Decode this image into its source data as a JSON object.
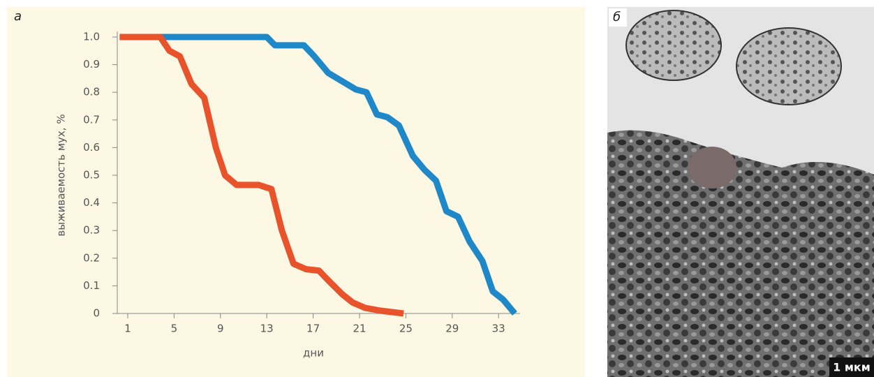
{
  "figure": {
    "panel_a_label": "а",
    "panel_b_label": "б",
    "scale_bar": "1 мкм"
  },
  "chart_data": {
    "type": "line",
    "x_label": "дни",
    "y_label": "выживаемость мух, %",
    "xlim": [
      0,
      35
    ],
    "ylim": [
      0,
      1
    ],
    "xticks": [
      1,
      5,
      9,
      13,
      17,
      21,
      25,
      29,
      33
    ],
    "yticks": [
      0,
      0.1,
      0.2,
      0.3,
      0.4,
      0.5,
      0.6,
      0.7,
      0.8,
      0.9,
      {
        "value": 1,
        "label": "1.0"
      }
    ],
    "series": [
      {
        "color": "#1f88c9",
        "x": [
          0.3,
          13,
          13.7,
          16.2,
          17.1,
          18.3,
          19.5,
          20.7,
          21.6,
          22.5,
          23.4,
          24.4,
          25.6,
          26.6,
          27.6,
          28.5,
          29.5,
          30.5,
          31.6,
          32.5,
          33.4,
          34.4
        ],
        "values": [
          1,
          1,
          0.97,
          0.97,
          0.93,
          0.87,
          0.84,
          0.81,
          0.8,
          0.72,
          0.71,
          0.68,
          0.57,
          0.52,
          0.48,
          0.37,
          0.35,
          0.26,
          0.19,
          0.08,
          0.05,
          0
        ]
      },
      {
        "color": "#e9532b",
        "x": [
          0.3,
          3.8,
          4.6,
          5.5,
          6.5,
          7.6,
          8.6,
          9.4,
          10.4,
          12.3,
          13.4,
          14.3,
          15.3,
          16.4,
          17.5,
          18.3,
          19.5,
          20.4,
          21.5,
          22.8,
          24.8
        ],
        "values": [
          1,
          1,
          0.95,
          0.93,
          0.83,
          0.78,
          0.6,
          0.5,
          0.465,
          0.465,
          0.45,
          0.3,
          0.18,
          0.16,
          0.155,
          0.12,
          0.07,
          0.04,
          0.02,
          0.01,
          0
        ]
      }
    ]
  }
}
